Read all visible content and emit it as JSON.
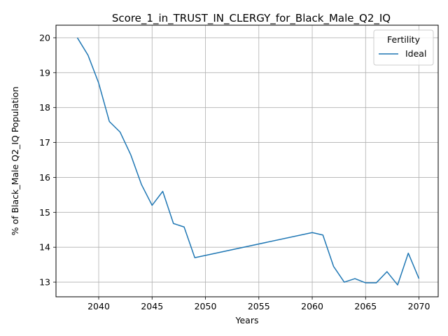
{
  "chart_data": {
    "type": "line",
    "title": "Score_1_in_TRUST_IN_CLERGY_for_Black_Male_Q2_IQ",
    "xlabel": "Years",
    "ylabel": "% of Black_Male Q2_IQ Population",
    "xlim": [
      2036,
      2071.8
    ],
    "ylim": [
      12.58,
      20.36
    ],
    "xticks": [
      "2040",
      "2045",
      "2050",
      "2055",
      "2060",
      "2065",
      "2070"
    ],
    "yticks": [
      "13",
      "14",
      "15",
      "16",
      "17",
      "18",
      "19",
      "20"
    ],
    "grid": true,
    "legend": {
      "title": "Fertility",
      "position": "top-right"
    },
    "series": [
      {
        "name": "Ideal",
        "color": "#1f77b4",
        "x": [
          2038,
          2039,
          2040,
          2041,
          2042,
          2043,
          2044,
          2045,
          2046,
          2047,
          2048,
          2049,
          2060,
          2061,
          2062,
          2063,
          2064,
          2065,
          2066,
          2067,
          2068,
          2069,
          2070
        ],
        "y": [
          20.0,
          19.5,
          18.7,
          17.6,
          17.3,
          16.65,
          15.8,
          15.2,
          15.6,
          14.68,
          14.58,
          13.7,
          14.42,
          14.35,
          13.45,
          13.0,
          13.1,
          12.98,
          12.98,
          13.3,
          12.92,
          13.83,
          13.1
        ]
      }
    ]
  }
}
